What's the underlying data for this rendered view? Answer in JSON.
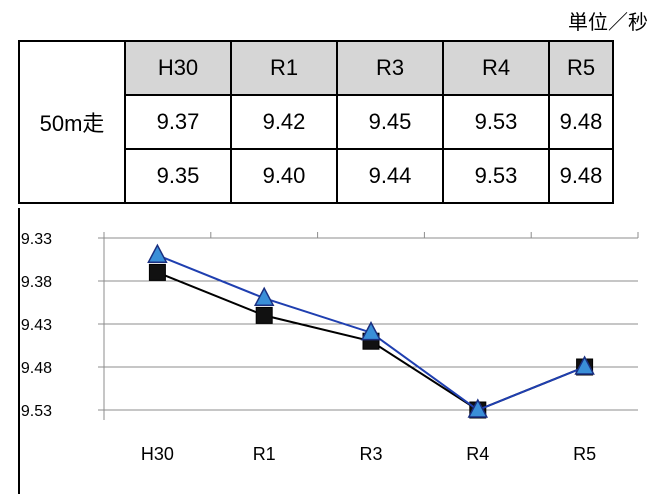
{
  "unit_label": "単位／秒",
  "table": {
    "row_label": "50m走",
    "headers": [
      "H30",
      "R1",
      "R3",
      "R4",
      "R5"
    ],
    "rows": [
      [
        "9.37",
        "9.42",
        "9.45",
        "9.53",
        "9.48"
      ],
      [
        "9.35",
        "9.40",
        "9.44",
        "9.53",
        "9.48"
      ]
    ]
  },
  "chart_data": {
    "type": "line",
    "categories": [
      "H30",
      "R1",
      "R3",
      "R4",
      "R5"
    ],
    "series": [
      {
        "values": [
          9.37,
          9.42,
          9.45,
          9.53,
          9.48
        ],
        "color": "#000000",
        "marker": "square"
      },
      {
        "values": [
          9.35,
          9.4,
          9.44,
          9.53,
          9.48
        ],
        "color": "#1f3fb0",
        "marker": "triangle",
        "marker_color": "#3a8fd8"
      }
    ],
    "y_ticks": [
      "9.33",
      "9.38",
      "9.43",
      "9.48",
      "9.53"
    ],
    "ylim": [
      9.33,
      9.53
    ],
    "y_inverted": true,
    "grid": true
  }
}
